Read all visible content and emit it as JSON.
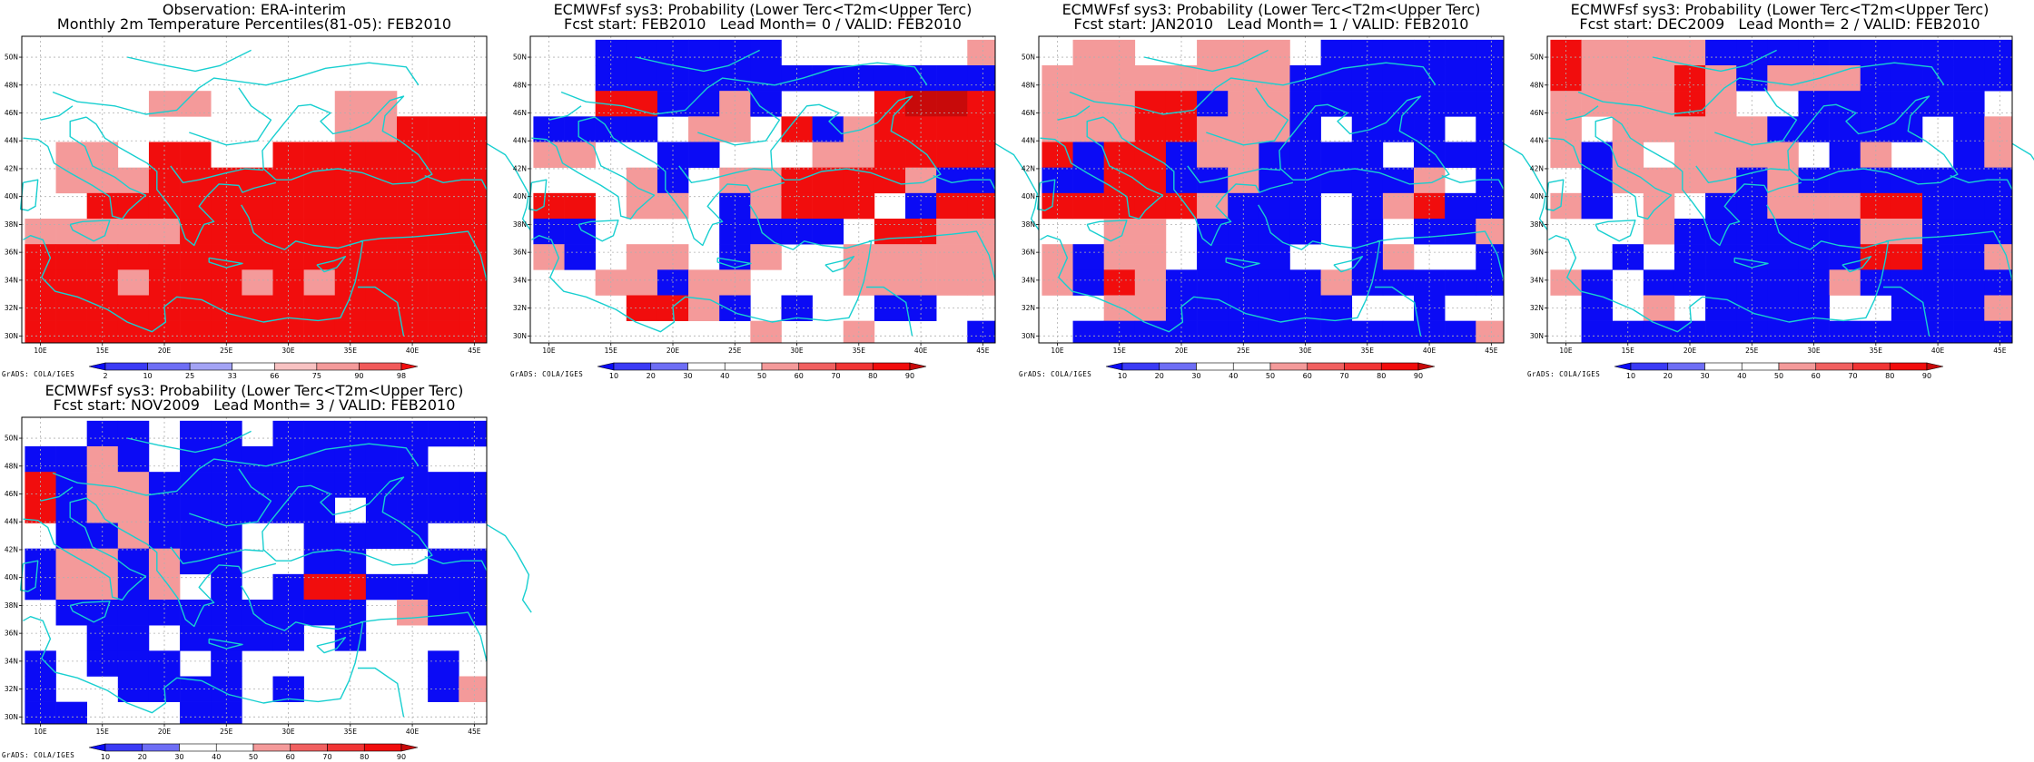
{
  "colors": {
    "blue": "#0b0bf5",
    "lightblue": "#7a7af5",
    "red": "#f10d0d",
    "pink": "#f49a9a",
    "darkred": "#c80a0a",
    "coast": "#18cfd0",
    "grid": "#b0b0b0"
  },
  "map": {
    "lon_labels": [
      "10E",
      "15E",
      "20E",
      "25E",
      "30E",
      "35E",
      "40E",
      "45E"
    ],
    "lat_labels": [
      "50N",
      "48N",
      "46N",
      "44N",
      "42N",
      "40N",
      "38N",
      "36N",
      "34N",
      "32N",
      "30N"
    ]
  },
  "panels": [
    {
      "id": "obs",
      "title1": "Observation: ERA-interim",
      "title2": "Monthly 2m Temperature Percentiles(81-05): FEB2010",
      "colorbar": {
        "labels": [
          "2",
          "10",
          "25",
          "33",
          "66",
          "75",
          "90",
          "98"
        ],
        "colors": [
          "#0b0bf5",
          "#3b3bf5",
          "#6e6ef5",
          "#a3a3f5",
          "#ffffff",
          "#f8c2c2",
          "#f49a9a",
          "#f15a5a",
          "#f10d0d"
        ]
      },
      "credit": "GrADS: COLA/IGES",
      "grid": [
        "...............",
        "...............",
        "....PP....PP...",
        "..........PPRRR",
        ".PP.RR..RRRRRRR",
        ".PPPRRRRRRRRRRR",
        "..RRRRRRRRRRRRR",
        "PPPPPRRRRRRRRRR",
        "RRRRRRRRRRRRRRR",
        "RRRPRRRPRPRRRRR",
        "RRRRRRRRRRRRRRR",
        "RRRRRRRRRRRRRRR"
      ]
    },
    {
      "id": "lead0",
      "title1": "ECMWFsf sys3: Probability (Lower Terc<T2m<Upper Terc)",
      "title2": "Fcst start: FEB2010   Lead Month= 0 / VALID: FEB2010",
      "colorbar": {
        "labels": [
          "10",
          "20",
          "30",
          "40",
          "50",
          "60",
          "70",
          "80",
          "90"
        ],
        "colors": [
          "#0b0bf5",
          "#3b3bf5",
          "#6e6ef5",
          "#ffffff",
          "#ffffff",
          "#f49a9a",
          "#f16060",
          "#f13535",
          "#f10d0d",
          "#c80a0a"
        ]
      },
      "credit": "GrADS: COLA/IGES",
      "grid": [
        "..BBBBBB......P",
        "..BBBBBBBBBBBBB",
        "..RRBBPB...RDDR",
        "BBBB.PP.RBPRRRR",
        "PP..BB...PPRRRR",
        "...PB.PPRRRRPBB",
        "RR.PP.BPRRR.BRR",
        "BB....BBBB.RRPP",
        "PB.PP.BP..PPPPP",
        "..PPBPP...PPPPP",
        "...RRPB.B..BB..",
        ".......P..P...B"
      ]
    },
    {
      "id": "lead1",
      "title1": "ECMWFsf sys3: Probability (Lower Terc<T2m<Upper Terc)",
      "title2": "Fcst start: JAN2010   Lead Month= 1 / VALID: FEB2010",
      "colorbar": {
        "labels": [
          "10",
          "20",
          "30",
          "40",
          "50",
          "60",
          "70",
          "80",
          "90"
        ],
        "colors": [
          "#0b0bf5",
          "#3b3bf5",
          "#6e6ef5",
          "#ffffff",
          "#ffffff",
          "#f49a9a",
          "#f16060",
          "#f13535",
          "#f10d0d",
          "#c80a0a"
        ]
      },
      "credit": "GrADS: COLA/IGES",
      "grid": [
        ".PP..PPP.BBBBBB",
        "PPPPPPPPBBBBBBB",
        "PPPRRBPPBBBBBBB",
        "PPPRRPPPB.BBB.B",
        "RBRRBPPBBBB.BBB",
        "BBRRBBPBBBBBP.B",
        "RRRRRPBBB.BPRBB",
        "..PP.BBBB.B.BBP",
        "PBPP.BBB..BP..B",
        "PBRPBBBBBPBBBBB",
        "..PPBBBBBB..B..",
        ".BBBBBBBBBBBBBP"
      ]
    },
    {
      "id": "lead2",
      "title1": "ECMWFsf sys3: Probability (Lower Terc<T2m<Upper Terc)",
      "title2": "Fcst start: DEC2009   Lead Month= 2 / VALID: FEB2010",
      "colorbar": {
        "labels": [
          "10",
          "20",
          "30",
          "40",
          "50",
          "60",
          "70",
          "80",
          "90"
        ],
        "colors": [
          "#0b0bf5",
          "#3b3bf5",
          "#6e6ef5",
          "#ffffff",
          "#ffffff",
          "#f49a9a",
          "#f16060",
          "#f13535",
          "#f10d0d",
          "#c80a0a"
        ]
      },
      "credit": "GrADS: COLA/IGES",
      "grid": [
        "RPPPPBBBBBBBBBB",
        "RPPPRPBPPPBBBBB",
        "PPPPRP..BBBBBB.",
        "P.PPPPPBBBBB.BP",
        "PBP.PPPP.BP..BP",
        ".BPPPPBPBBBBBBB",
        "PB.P.BBPPPRRBBB",
        "...PBBBBBBPPBBB",
        "..B.BBBBBBRRBBP",
        "PB.BBBBBBPBBBBB",
        ".B.P.BBBB..BBBP",
        ".BBBBBBBBBBBBBB"
      ]
    },
    {
      "id": "lead3",
      "title1": "ECMWFsf sys3: Probability (Lower Terc<T2m<Upper Terc)",
      "title2": "Fcst start: NOV2009   Lead Month= 3 / VALID: FEB2010",
      "colorbar": {
        "labels": [
          "10",
          "20",
          "30",
          "40",
          "50",
          "60",
          "70",
          "80",
          "90"
        ],
        "colors": [
          "#0b0bf5",
          "#3b3bf5",
          "#6e6ef5",
          "#ffffff",
          "#ffffff",
          "#f49a9a",
          "#f16060",
          "#f13535",
          "#f10d0d",
          "#c80a0a"
        ]
      },
      "credit": "GrADS: COLA/IGES",
      "grid": [
        "..BB.BB.BBBBBBB",
        "BBPB.BBBBBBBB..",
        "RBPPBBBBBBBBBBB",
        "RBPPBBBBBB.BBBB",
        ".BBPBBB..BBBB..",
        "BPPBPBB..BB..BB",
        "BPPBP.B.BRRBBBB",
        ".BBBBBBBBBB.PBB",
        "..BB.BBBB.B....",
        "B.BBB.B......B.",
        "B..BBBB.B....BP",
        "BB...BB........"
      ]
    }
  ]
}
